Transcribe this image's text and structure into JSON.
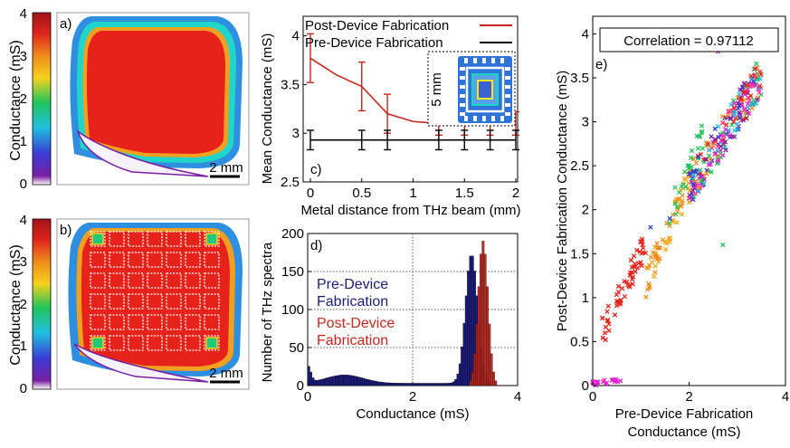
{
  "chart_data": [
    {
      "panel": "a)",
      "type": "heatmap",
      "colorbar": {
        "label": "Conductance (mS)",
        "ticks": [
          "0",
          "1",
          "2",
          "3",
          "4"
        ],
        "range": [
          0,
          4
        ]
      },
      "scalebar": "2 mm"
    },
    {
      "panel": "b)",
      "type": "heatmap",
      "colorbar": {
        "label": "Conductance (mS)",
        "ticks": [
          "0",
          "1",
          "2",
          "3",
          "4"
        ],
        "range": [
          0,
          4
        ]
      },
      "scalebar": "2 mm"
    },
    {
      "panel": "c)",
      "type": "line",
      "xlabel": "Metal distance from THz beam (mm)",
      "ylabel": "Mean Conductance (mS)",
      "xlim": [
        0,
        2
      ],
      "ylim": [
        2.5,
        4.2
      ],
      "xticks": [
        "0",
        "0.5",
        "1",
        "1.5",
        "2"
      ],
      "yticks": [
        "2.5",
        "3",
        "3.5",
        "4"
      ],
      "inset_label": "5 mm",
      "series": [
        {
          "name": "Post-Device Fabrication",
          "color": "#c8251d",
          "x": [
            0,
            0.25,
            0.5,
            0.75,
            1.0,
            1.25,
            1.5,
            1.75,
            2.0
          ],
          "y": [
            3.77,
            3.6,
            3.48,
            3.2,
            3.12,
            3.1,
            3.1,
            3.1,
            3.1
          ],
          "err": [
            0.25,
            null,
            0.25,
            0.2,
            null,
            0.12,
            0.12,
            0.12,
            0.12
          ]
        },
        {
          "name": "Pre-Device Fabrication",
          "color": "#000000",
          "x": [
            0,
            0.25,
            0.5,
            0.75,
            1.0,
            1.25,
            1.5,
            1.75,
            2.0
          ],
          "y": [
            2.93,
            2.93,
            2.93,
            2.93,
            2.93,
            2.93,
            2.93,
            2.93,
            2.93
          ],
          "err": [
            0.1,
            null,
            0.1,
            0.1,
            null,
            0.1,
            0.1,
            0.1,
            0.1
          ]
        }
      ]
    },
    {
      "panel": "d)",
      "type": "bar",
      "xlabel": "Conductance (mS)",
      "ylabel": "Number of THz spectra",
      "xlim": [
        0,
        4
      ],
      "ylim": [
        0,
        200
      ],
      "xticks": [
        "0",
        "2",
        "4"
      ],
      "yticks": [
        "0",
        "50",
        "100",
        "150",
        "200"
      ],
      "grid": true,
      "series": [
        {
          "name": "Pre-Device Fabrication",
          "color": "#1c1c7a"
        },
        {
          "name": "Post-Device Fabrication",
          "color": "#b3241b"
        }
      ],
      "labels": {
        "pre": [
          "Pre-Device",
          "Fabrication"
        ],
        "post": [
          "Post-Device",
          "Fabrication"
        ]
      }
    },
    {
      "panel": "e)",
      "type": "scatter",
      "xlabel_lines": [
        "Pre-Device Fabrication",
        "Conductance (mS)"
      ],
      "ylabel": "Post-Device Fabrication Conductance (mS)",
      "xlim": [
        0,
        4
      ],
      "ylim": [
        0,
        4.2
      ],
      "xticks": [
        "0",
        "2",
        "4"
      ],
      "yticks": [
        "0",
        "0.5",
        "1",
        "1.5",
        "2",
        "2.5",
        "3",
        "3.5",
        "4"
      ],
      "annotation": "Correlation = 0.97112",
      "marker": "x"
    }
  ]
}
